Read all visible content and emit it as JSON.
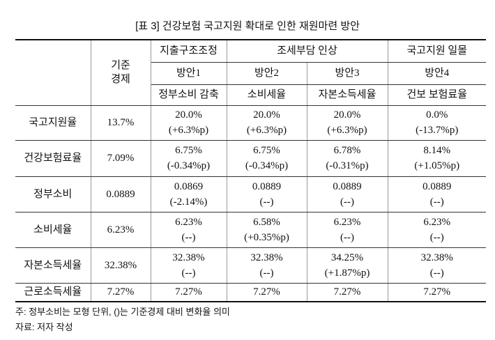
{
  "title": "[표 3] 건강보험 국고지원 확대로 인한 재원마련 방안",
  "table": {
    "header": {
      "base": "기준 경제",
      "groups": [
        "지출구조조정",
        "조세부담 인상",
        "국고지원 일몰"
      ],
      "plans": [
        "방안1",
        "방안2",
        "방안3",
        "방안4"
      ],
      "measures": [
        "정부소비 감축",
        "소비세율",
        "자본소득세율",
        "건보 보험료율"
      ]
    },
    "rows": [
      {
        "label": "국고지원율",
        "base": "13.7%",
        "cells": [
          [
            "20.0%",
            "(+6.3%p)"
          ],
          [
            "20.0%",
            "(+6.3%p)"
          ],
          [
            "20.0%",
            "(+6.3%p)"
          ],
          [
            "0.0%",
            "(-13.7%p)"
          ]
        ]
      },
      {
        "label": "건강보험료율",
        "base": "7.09%",
        "cells": [
          [
            "6.75%",
            "(-0.34%p)"
          ],
          [
            "6.75%",
            "(-0.34%p)"
          ],
          [
            "6.78%",
            "(-0.31%p)"
          ],
          [
            "8.14%",
            "(+1.05%p)"
          ]
        ]
      },
      {
        "label": "정부소비",
        "base": "0.0889",
        "cells": [
          [
            "0.0869",
            "(-2.14%)"
          ],
          [
            "0.0889",
            "(--)"
          ],
          [
            "0.0889",
            "(--)"
          ],
          [
            "0.0889",
            "(--)"
          ]
        ]
      },
      {
        "label": "소비세율",
        "base": "6.23%",
        "cells": [
          [
            "6.23%",
            "(--)"
          ],
          [
            "6.58%",
            "(+0.35%p)"
          ],
          [
            "6.23%",
            "(--)"
          ],
          [
            "6.23%",
            "(--)"
          ]
        ]
      },
      {
        "label": "자본소득세율",
        "base": "32.38%",
        "cells": [
          [
            "32.38%",
            "(--)"
          ],
          [
            "32.38%",
            "(--)"
          ],
          [
            "34.25%",
            "(+1.87%p)"
          ],
          [
            "32.38%",
            "(--)"
          ]
        ]
      },
      {
        "label": "근로소득세율",
        "base": "7.27%",
        "cells": [
          [
            "7.27%"
          ],
          [
            "7.27%"
          ],
          [
            "7.27%"
          ],
          [
            "7.27%"
          ]
        ]
      }
    ]
  },
  "notes": [
    "주: 정부소비는 모형 단위, ()는 기준경제 대비 변화율 의미",
    "자료: 저자 작성"
  ]
}
